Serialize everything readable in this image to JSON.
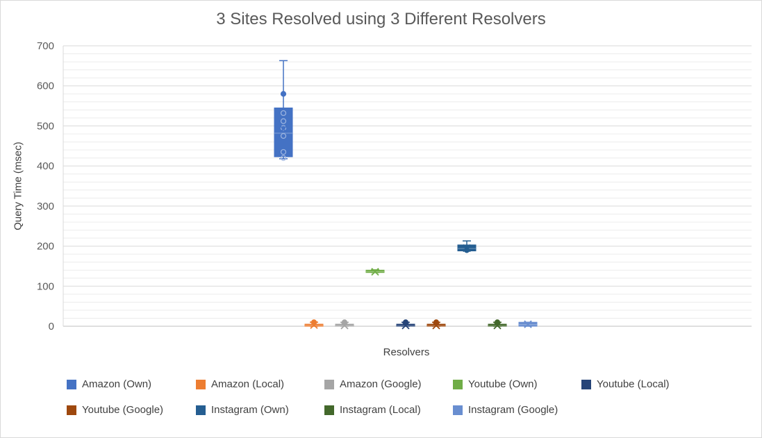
{
  "chart_data": {
    "type": "box",
    "title": "3 Sites Resolved using 3 Different Resolvers",
    "xlabel": "Resolvers",
    "ylabel": "Query Time (msec)",
    "ylim": [
      0,
      700
    ],
    "yticks": [
      0,
      100,
      200,
      300,
      400,
      500,
      600,
      700
    ],
    "grid": true,
    "legend_position": "bottom",
    "series": [
      {
        "name": "Amazon (Own)",
        "color": "#4472C4",
        "min": 418,
        "q1": 423,
        "median": 482,
        "q3": 545,
        "max": 663,
        "mean": 492,
        "points": [
          580,
          532,
          512,
          495,
          475,
          435,
          420
        ]
      },
      {
        "name": "Amazon (Local)",
        "color": "#ED7D31",
        "min": 0,
        "q1": 0,
        "median": 2,
        "q3": 4,
        "max": 10,
        "mean": 3,
        "points": [
          10
        ]
      },
      {
        "name": "Amazon (Google)",
        "color": "#A5A5A5",
        "min": 0,
        "q1": 0,
        "median": 1,
        "q3": 2,
        "max": 10,
        "mean": 2,
        "points": [
          10
        ]
      },
      {
        "name": "Youtube (Own)",
        "color": "#70AD47",
        "min": 134,
        "q1": 134,
        "median": 136,
        "q3": 140,
        "max": 141,
        "mean": 136,
        "points": []
      },
      {
        "name": "Youtube (Local)",
        "color": "#264478",
        "min": 0,
        "q1": 0,
        "median": 1,
        "q3": 2,
        "max": 10,
        "mean": 2,
        "points": [
          10
        ]
      },
      {
        "name": "Youtube (Google)",
        "color": "#9E480E",
        "min": 0,
        "q1": 0,
        "median": 1,
        "q3": 2,
        "max": 10,
        "mean": 2,
        "points": [
          10
        ]
      },
      {
        "name": "Instagram (Own)",
        "color": "#255E91",
        "min": 188,
        "q1": 188,
        "median": 194,
        "q3": 203,
        "max": 213,
        "mean": 195,
        "points": [
          190
        ]
      },
      {
        "name": "Instagram (Local)",
        "color": "#43682B",
        "min": 0,
        "q1": 0,
        "median": 1,
        "q3": 2,
        "max": 10,
        "mean": 2,
        "points": [
          10
        ]
      },
      {
        "name": "Instagram (Google)",
        "color": "#698ED0",
        "min": 0,
        "q1": 0,
        "median": 4,
        "q3": 10,
        "max": 10,
        "mean": 5,
        "points": []
      }
    ]
  }
}
